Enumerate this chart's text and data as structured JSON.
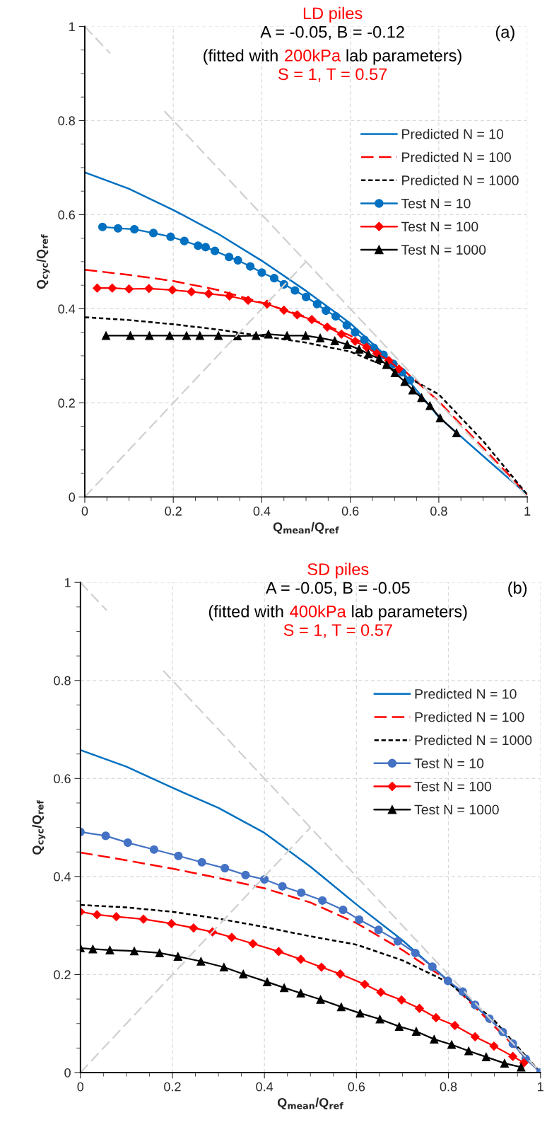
{
  "chart_data": [
    {
      "type": "line",
      "title": "LD piles",
      "subtitle": "A = -0.05, B = -0.12",
      "xlabel": "Q$_{mean}$/Q$_{ref}$",
      "ylabel": "Q$_{cyc}$/Q$_{ref}$",
      "annotations": [
        "(fitted with",
        "200kPa",
        "lab parameters)",
        "S = 1, T = 0.57",
        "(a)"
      ],
      "xlim": [
        0,
        1
      ],
      "ylim": [
        0,
        1
      ],
      "xticks": [
        0,
        0.2,
        0.4,
        0.6,
        0.8,
        1
      ],
      "yticks": [
        0,
        0.2,
        0.4,
        0.6,
        0.8,
        1
      ],
      "grid": true,
      "legend": "top right",
      "series": [
        {
          "name": "Predicted N = 10",
          "color": "#0070c0",
          "line_style": "solid",
          "marker": "none",
          "x": [
            0,
            0.1,
            0.2,
            0.3,
            0.4,
            0.5,
            0.6,
            0.7,
            0.8,
            0.9,
            1
          ],
          "values": [
            0.69,
            0.655,
            0.61,
            0.56,
            0.502,
            0.438,
            0.369,
            0.283,
            0.17,
            0.087,
            0.005
          ]
        },
        {
          "name": "Predicted N = 100",
          "color": "#ff0000",
          "line_style": "dashed",
          "marker": "none",
          "x": [
            0,
            0.1,
            0.2,
            0.3,
            0.4,
            0.5,
            0.6,
            0.7,
            0.8,
            0.9,
            1
          ],
          "values": [
            0.483,
            0.472,
            0.459,
            0.44,
            0.413,
            0.383,
            0.343,
            0.287,
            0.203,
            0.105,
            0.005
          ]
        },
        {
          "name": "Predicted N = 1000",
          "color": "#000000",
          "line_style": "dotted",
          "marker": "none",
          "x": [
            0,
            0.1,
            0.2,
            0.3,
            0.4,
            0.5,
            0.6,
            0.7,
            0.8,
            0.9,
            1
          ],
          "values": [
            0.382,
            0.376,
            0.367,
            0.356,
            0.342,
            0.328,
            0.309,
            0.27,
            0.218,
            0.119,
            0.005
          ]
        },
        {
          "name": "Test N = 10",
          "color": "#0070c0",
          "line_style": "solid",
          "marker": "circle",
          "x": [
            0.04,
            0.075,
            0.112,
            0.155,
            0.194,
            0.225,
            0.256,
            0.273,
            0.294,
            0.326,
            0.346,
            0.374,
            0.4,
            0.428,
            0.45,
            0.475,
            0.5,
            0.525,
            0.545,
            0.567,
            0.592,
            0.611,
            0.632,
            0.653,
            0.675,
            0.697,
            0.717,
            0.735
          ],
          "values": [
            0.574,
            0.571,
            0.569,
            0.561,
            0.553,
            0.544,
            0.534,
            0.531,
            0.523,
            0.51,
            0.503,
            0.49,
            0.477,
            0.465,
            0.452,
            0.439,
            0.425,
            0.41,
            0.396,
            0.384,
            0.365,
            0.35,
            0.334,
            0.317,
            0.302,
            0.283,
            0.265,
            0.248
          ]
        },
        {
          "name": "Test N = 100",
          "color": "#ff0000",
          "line_style": "solid",
          "marker": "diamond",
          "x": [
            0.028,
            0.062,
            0.1,
            0.145,
            0.198,
            0.241,
            0.28,
            0.327,
            0.369,
            0.412,
            0.45,
            0.48,
            0.513,
            0.548,
            0.58,
            0.611,
            0.637,
            0.66,
            0.687,
            0.71
          ],
          "values": [
            0.444,
            0.444,
            0.442,
            0.443,
            0.44,
            0.436,
            0.432,
            0.427,
            0.418,
            0.41,
            0.397,
            0.387,
            0.377,
            0.361,
            0.346,
            0.331,
            0.318,
            0.305,
            0.29,
            0.272
          ]
        },
        {
          "name": "Test N = 1000",
          "color": "#000000",
          "line_style": "solid",
          "marker": "triangle",
          "x": [
            0.048,
            0.103,
            0.146,
            0.192,
            0.23,
            0.26,
            0.302,
            0.345,
            0.387,
            0.415,
            0.457,
            0.499,
            0.532,
            0.565,
            0.593,
            0.62,
            0.641,
            0.665,
            0.682,
            0.701,
            0.723,
            0.741,
            0.761,
            0.78,
            0.803,
            0.84
          ],
          "values": [
            0.343,
            0.343,
            0.343,
            0.343,
            0.343,
            0.343,
            0.343,
            0.342,
            0.343,
            0.346,
            0.343,
            0.343,
            0.338,
            0.332,
            0.324,
            0.314,
            0.304,
            0.294,
            0.281,
            0.264,
            0.245,
            0.227,
            0.211,
            0.194,
            0.168,
            0.136
          ]
        },
        {
          "color": "#d0d0d0",
          "line_style": "dashed",
          "marker": "none",
          "x": [
            0,
            0.057
          ],
          "values": [
            1,
            0.943
          ]
        },
        {
          "color": "#d0d0d0",
          "line_style": "dashed",
          "marker": "none",
          "x": [
            0.18,
            1
          ],
          "values": [
            0.82,
            0
          ]
        },
        {
          "color": "#d0d0d0",
          "line_style": "dashed",
          "marker": "none",
          "x": [
            0,
            0.5
          ],
          "values": [
            0,
            0.5
          ]
        }
      ]
    },
    {
      "type": "line",
      "title": "SD piles",
      "subtitle": "A = -0.05, B = -0.05",
      "xlabel": "Q$_{mean}$/Q$_{ref}$",
      "ylabel": "Q$_{cyc}$/Q$_{ref}$",
      "annotations": [
        "(fitted with",
        "400kPa",
        "lab parameters)",
        "S = 1, T = 0.57",
        "(b)"
      ],
      "xlim": [
        0,
        1
      ],
      "ylim": [
        0,
        1
      ],
      "xticks": [
        0,
        0.2,
        0.4,
        0.6,
        0.8,
        1
      ],
      "yticks": [
        0,
        0.2,
        0.4,
        0.6,
        0.8,
        1
      ],
      "grid": true,
      "legend": "top right",
      "series": [
        {
          "name": "Predicted N = 10",
          "color": "#0070c0",
          "line_style": "solid",
          "marker": "none",
          "x": [
            0,
            0.1,
            0.2,
            0.3,
            0.4,
            0.5,
            0.6,
            0.7,
            0.8,
            0.9,
            1
          ],
          "values": [
            0.658,
            0.624,
            0.581,
            0.54,
            0.489,
            0.42,
            0.343,
            0.27,
            0.187,
            0.1,
            0
          ]
        },
        {
          "name": "Predicted N = 100",
          "color": "#ff0000",
          "line_style": "dashed",
          "marker": "none",
          "x": [
            0,
            0.1,
            0.2,
            0.3,
            0.4,
            0.5,
            0.6,
            0.7,
            0.8,
            0.9,
            1
          ],
          "values": [
            0.449,
            0.433,
            0.416,
            0.397,
            0.376,
            0.347,
            0.305,
            0.25,
            0.187,
            0.094,
            0
          ]
        },
        {
          "name": "Predicted N = 1000",
          "color": "#000000",
          "line_style": "dotted",
          "marker": "none",
          "x": [
            0,
            0.1,
            0.2,
            0.3,
            0.4,
            0.5,
            0.6,
            0.7,
            0.8,
            0.9,
            1
          ],
          "values": [
            0.342,
            0.337,
            0.328,
            0.314,
            0.297,
            0.278,
            0.261,
            0.229,
            0.184,
            0.106,
            0
          ]
        },
        {
          "name": "Test N = 10",
          "color": "#4472c4",
          "line_style": "solid",
          "marker": "circle",
          "x": [
            0,
            0.055,
            0.103,
            0.16,
            0.213,
            0.264,
            0.314,
            0.359,
            0.4,
            0.439,
            0.48,
            0.526,
            0.571,
            0.606,
            0.648,
            0.69,
            0.728,
            0.765,
            0.799,
            0.831,
            0.858,
            0.889,
            0.918,
            0.94,
            0.968,
            1
          ],
          "values": [
            0.491,
            0.483,
            0.469,
            0.455,
            0.442,
            0.429,
            0.417,
            0.403,
            0.394,
            0.38,
            0.367,
            0.351,
            0.332,
            0.312,
            0.291,
            0.268,
            0.244,
            0.216,
            0.187,
            0.165,
            0.138,
            0.11,
            0.083,
            0.059,
            0.028,
            0
          ]
        },
        {
          "name": "Test N = 100",
          "color": "#ff0000",
          "line_style": "solid",
          "marker": "diamond",
          "x": [
            0,
            0.036,
            0.078,
            0.137,
            0.198,
            0.246,
            0.287,
            0.329,
            0.375,
            0.431,
            0.479,
            0.524,
            0.565,
            0.618,
            0.653,
            0.698,
            0.737,
            0.773,
            0.814,
            0.858,
            0.899,
            0.94,
            0.964
          ],
          "values": [
            0.328,
            0.322,
            0.318,
            0.313,
            0.304,
            0.295,
            0.287,
            0.276,
            0.263,
            0.247,
            0.231,
            0.215,
            0.201,
            0.18,
            0.164,
            0.148,
            0.131,
            0.112,
            0.096,
            0.073,
            0.054,
            0.033,
            0.02
          ]
        },
        {
          "name": "Test N = 1000",
          "color": "#000000",
          "line_style": "solid",
          "marker": "triangle",
          "x": [
            0,
            0.027,
            0.064,
            0.117,
            0.172,
            0.212,
            0.262,
            0.312,
            0.354,
            0.406,
            0.443,
            0.479,
            0.522,
            0.567,
            0.608,
            0.651,
            0.693,
            0.73,
            0.769,
            0.807,
            0.844,
            0.882,
            0.922,
            0.958
          ],
          "values": [
            0.254,
            0.252,
            0.25,
            0.248,
            0.244,
            0.237,
            0.227,
            0.215,
            0.201,
            0.185,
            0.173,
            0.162,
            0.149,
            0.134,
            0.121,
            0.109,
            0.094,
            0.084,
            0.068,
            0.057,
            0.044,
            0.032,
            0.019,
            0.011
          ]
        },
        {
          "color": "#d0d0d0",
          "line_style": "dashed",
          "marker": "none",
          "x": [
            0,
            0.057
          ],
          "values": [
            1,
            0.943
          ]
        },
        {
          "color": "#d0d0d0",
          "line_style": "dashed",
          "marker": "none",
          "x": [
            0.18,
            1
          ],
          "values": [
            0.82,
            0
          ]
        },
        {
          "color": "#d0d0d0",
          "line_style": "dashed",
          "marker": "none",
          "x": [
            0,
            0.5
          ],
          "values": [
            0,
            0.5
          ]
        }
      ]
    }
  ]
}
